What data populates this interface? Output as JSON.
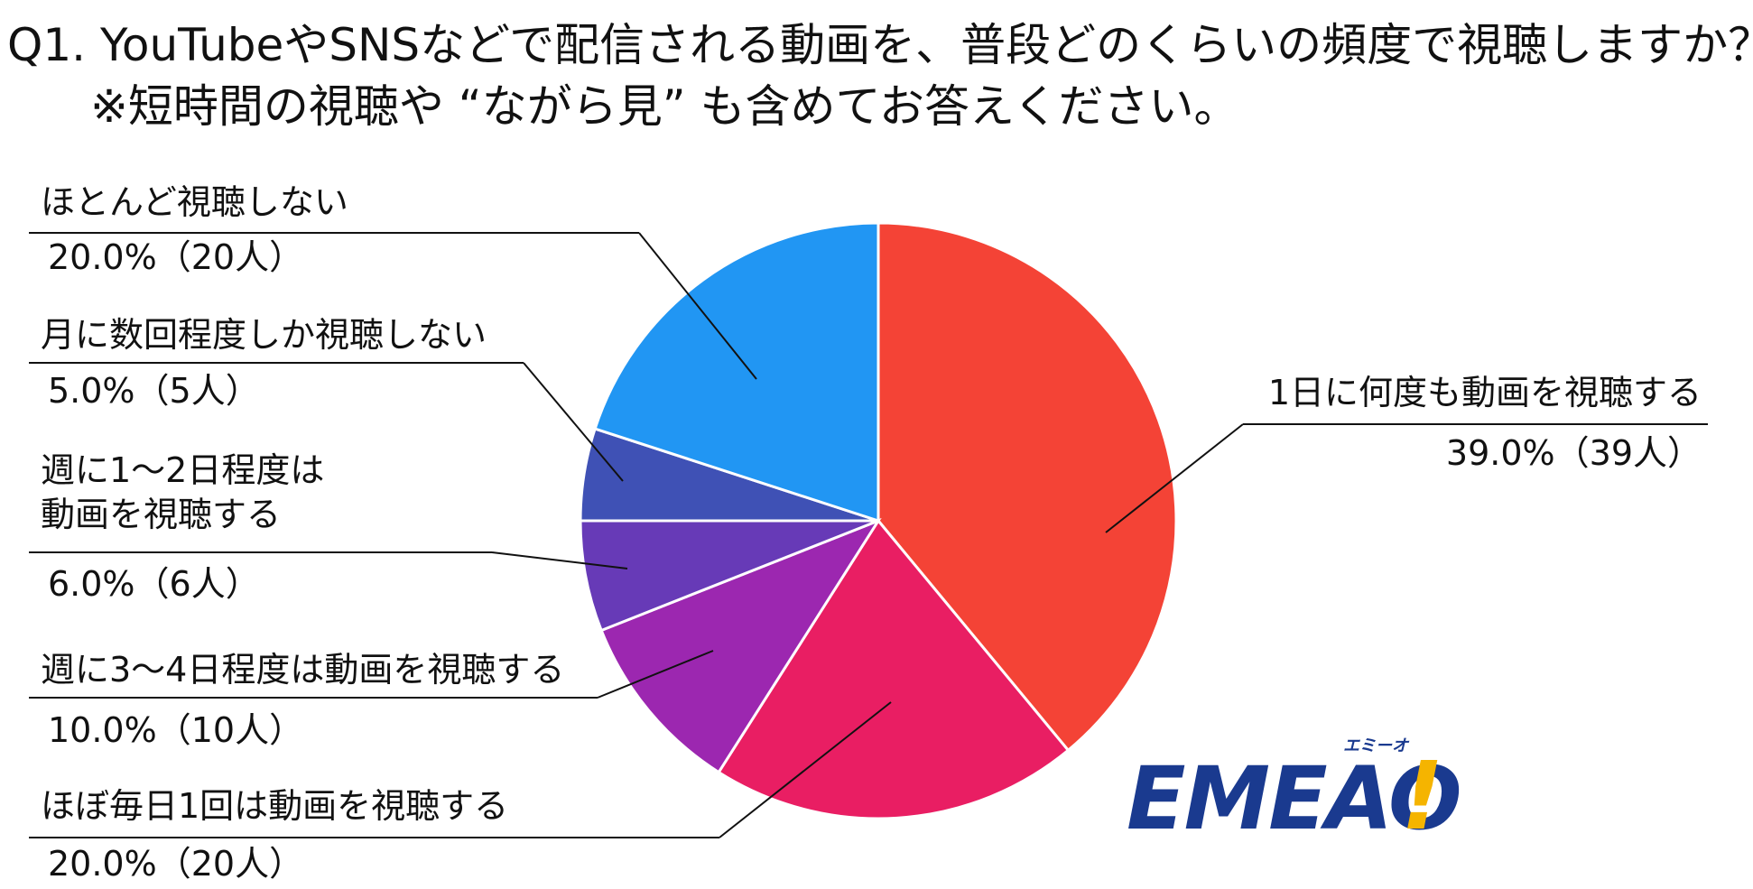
{
  "title": {
    "line1": "Q1. YouTubeやSNSなどで配信される動画を、普段どのくらいの頻度で視聴しますか？",
    "line2": "※短時間の視聴や “ながら見” も含めてお答えください。"
  },
  "chart_data": {
    "type": "pie",
    "start": "top, clockwise",
    "slices": [
      {
        "name": "1日に何度も動画を視聴する",
        "value": 39.0,
        "count_label": "39.0%（39人）",
        "color": "#F44336"
      },
      {
        "name": "ほぼ毎日1回は動画を視聴する",
        "value": 20.0,
        "count_label": "20.0%（20人）",
        "color": "#E91E63"
      },
      {
        "name": "週に3〜4日程度は動画を視聴する",
        "value": 10.0,
        "count_label": "10.0%（10人）",
        "color": "#9C27B0"
      },
      {
        "name": "週に1〜2日程度は動画を視聴する",
        "name_lines": [
          "週に1〜2日程度は",
          "動画を視聴する"
        ],
        "value": 6.0,
        "count_label": "6.0%（6人）",
        "color": "#673AB7"
      },
      {
        "name": "月に数回程度しか視聴しない",
        "value": 5.0,
        "count_label": "5.0%（5人）",
        "color": "#3F51B5"
      },
      {
        "name": "ほとんど視聴しない",
        "value": 20.0,
        "count_label": "20.0%（20人）",
        "color": "#2196F3"
      }
    ]
  },
  "logo": {
    "text": "EMEAO!",
    "ruby": "エミーオ",
    "colors": {
      "main": "#1A3A8F",
      "accent": "#F5B400"
    }
  }
}
